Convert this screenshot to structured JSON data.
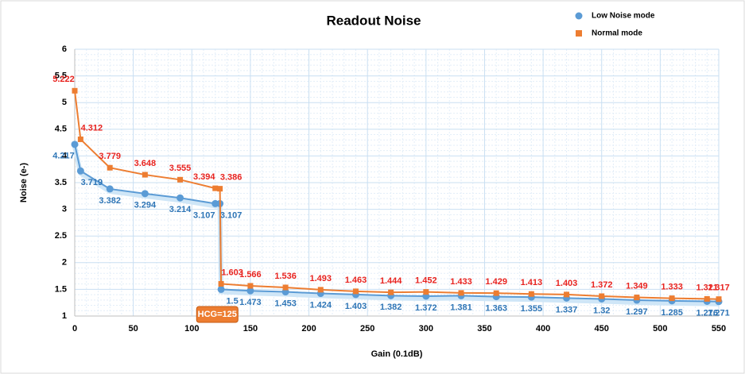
{
  "chart_data": {
    "type": "line",
    "title": "Readout Noise",
    "x_label": "Gain (0.1dB)",
    "y_label": "Noise (e-)",
    "x": [
      0,
      5,
      30,
      60,
      90,
      120,
      124,
      125,
      150,
      180,
      210,
      240,
      270,
      300,
      330,
      360,
      390,
      420,
      450,
      480,
      510,
      540,
      550
    ],
    "series": [
      {
        "name": "Low Noise mode",
        "color": "#5b9bd5",
        "label_color": "#2e75b6",
        "marker": "circle",
        "values": [
          4.217,
          3.719,
          3.382,
          3.294,
          3.214,
          3.107,
          3.107,
          1.5,
          1.473,
          1.453,
          1.424,
          1.403,
          1.382,
          1.372,
          1.381,
          1.363,
          1.355,
          1.337,
          1.32,
          1.297,
          1.285,
          1.276,
          1.271
        ]
      },
      {
        "name": "Normal mode",
        "color": "#ed7d31",
        "label_color": "#e8231f",
        "marker": "square",
        "values": [
          5.222,
          4.312,
          3.779,
          3.648,
          3.555,
          3.394,
          3.386,
          1.603,
          1.566,
          1.536,
          1.493,
          1.463,
          1.444,
          1.452,
          1.433,
          1.429,
          1.413,
          1.403,
          1.372,
          1.349,
          1.333,
          1.321,
          1.317
        ]
      }
    ],
    "annotation": "HCG=125",
    "xlim": [
      0,
      550
    ],
    "xticks": [
      0,
      50,
      100,
      150,
      200,
      250,
      300,
      350,
      400,
      450,
      500,
      550
    ],
    "ylim": [
      1,
      6
    ],
    "yticks": [
      1,
      1.5,
      2,
      2.5,
      3,
      3.5,
      4,
      4.5,
      5,
      5.5,
      6
    ],
    "grid": true,
    "legend": "top-right"
  }
}
